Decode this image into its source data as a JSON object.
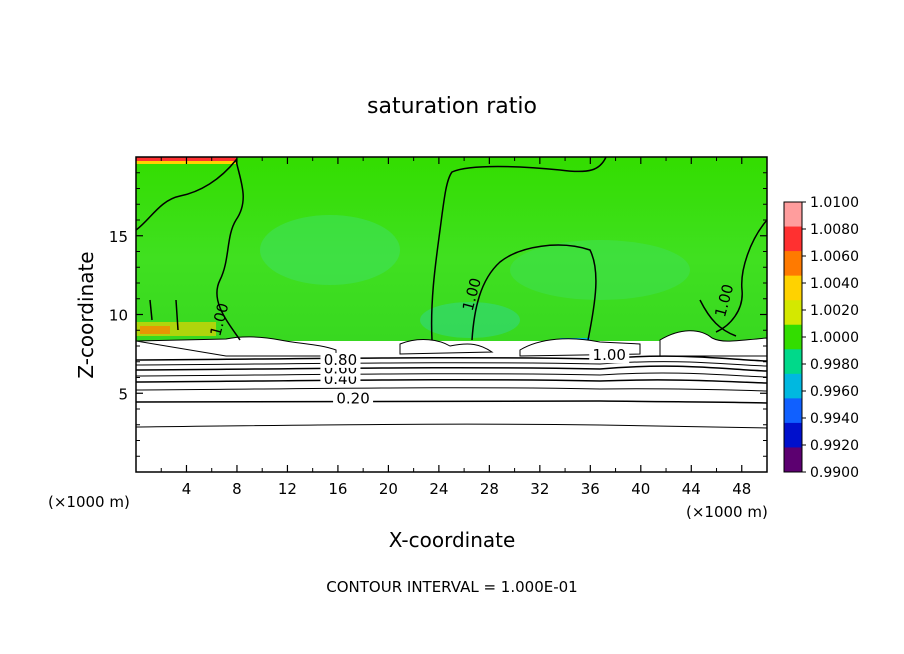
{
  "chart_data": {
    "type": "heatmap",
    "title": "saturation ratio",
    "xlabel": "X-coordinate",
    "ylabel": "Z-coordinate",
    "x_unit_left": "(×1000 m)",
    "x_unit_right": "(×1000 m)",
    "xlim": [
      0,
      50
    ],
    "ylim": [
      0,
      20
    ],
    "x_ticks": [
      "4",
      "8",
      "12",
      "16",
      "20",
      "24",
      "28",
      "32",
      "36",
      "40",
      "44",
      "48"
    ],
    "y_ticks": [
      "5",
      "10",
      "15"
    ],
    "x_tick_values": [
      4,
      8,
      12,
      16,
      20,
      24,
      28,
      32,
      36,
      40,
      44,
      48
    ],
    "y_tick_values": [
      5,
      10,
      15
    ],
    "colorbar": {
      "labels": [
        "1.0100",
        "1.0080",
        "1.0060",
        "1.0040",
        "1.0020",
        "1.0000",
        "0.9980",
        "0.9960",
        "0.9940",
        "0.9920",
        "0.9900"
      ],
      "colors": [
        "#ff9d9d",
        "#ff3030",
        "#ff7a00",
        "#ffd200",
        "#d4e800",
        "#33dd00",
        "#00d98a",
        "#00b8e0",
        "#1060ff",
        "#0010cc",
        "#5c0070"
      ]
    },
    "contour_labels": [
      {
        "text": "0.20",
        "value": 0.2,
        "x": 17.2,
        "z": 4.35
      },
      {
        "text": "0.40",
        "value": 0.4,
        "x": 16.2,
        "z": 5.6
      },
      {
        "text": "0.60",
        "value": 0.6,
        "x": 16.2,
        "z": 6.25
      },
      {
        "text": "0.80",
        "value": 0.8,
        "x": 16.2,
        "z": 6.8
      },
      {
        "text": "1.00",
        "value": 1.0,
        "x": 27.0,
        "z": 11.2
      },
      {
        "text": "1.00",
        "value": 1.0,
        "x": 37.5,
        "z": 7.1
      },
      {
        "text": "1.00",
        "value": 1.0,
        "x": 47.0,
        "z": 10.8
      },
      {
        "text": "1.00",
        "value": 1.0,
        "x": 7.0,
        "z": 9.6
      }
    ],
    "contour_interval": "CONTOUR INTERVAL = 1.000E-01",
    "background_value": 1.0,
    "cloud_base_z": 8.4,
    "grid": false,
    "legend_placement": "right"
  }
}
